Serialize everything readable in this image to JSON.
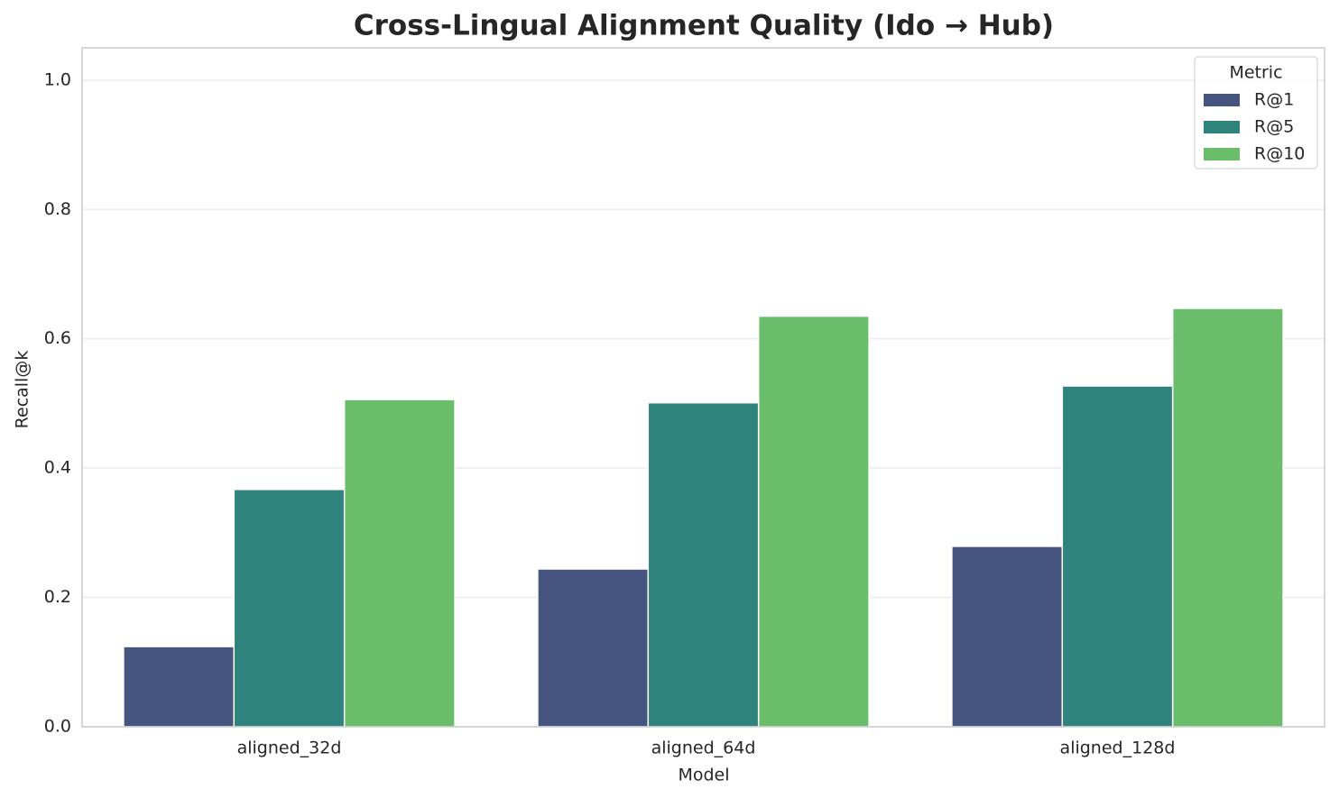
{
  "chart_data": {
    "type": "bar",
    "title": "Cross-Lingual Alignment Quality (Ido → Hub)",
    "x_label": "Model",
    "y_label": "Recall@k",
    "categories": [
      "aligned_32d",
      "aligned_64d",
      "aligned_128d"
    ],
    "series": [
      {
        "name": "R@1",
        "color": "#46557f",
        "values": [
          0.124,
          0.244,
          0.279
        ]
      },
      {
        "name": "R@5",
        "color": "#2e837c",
        "values": [
          0.367,
          0.501,
          0.527
        ]
      },
      {
        "name": "R@10",
        "color": "#6abd6b",
        "values": [
          0.506,
          0.635,
          0.647
        ]
      }
    ],
    "legend_title": "Metric",
    "legend_position": "upper right",
    "ylim": [
      0,
      1.05
    ],
    "yticks": [
      {
        "value": 0,
        "label": "0.0"
      },
      0.2,
      0.4,
      0.6,
      0.8,
      {
        "value": 1,
        "label": "1.0"
      }
    ],
    "grid": true
  }
}
